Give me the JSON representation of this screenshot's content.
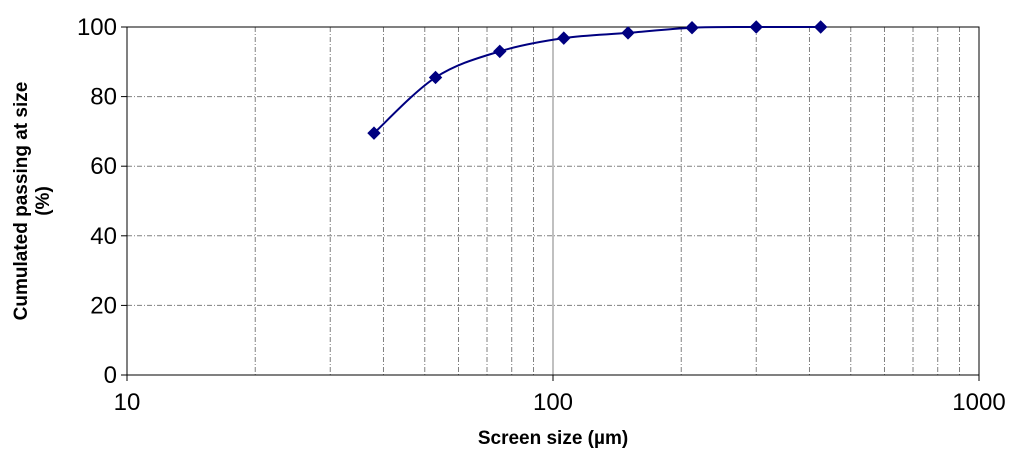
{
  "chart_data": {
    "type": "line",
    "xscale": "log",
    "xlim": [
      10,
      1000
    ],
    "ylim": [
      0,
      100
    ],
    "xticks": [
      "10",
      "100",
      "1000"
    ],
    "yticks": [
      "0",
      "20",
      "40",
      "60",
      "80",
      "100"
    ],
    "xlabel": "Screen size (µm)",
    "ylabel_line1": "Cumulated passing at size",
    "ylabel_line2": "(%)",
    "grid": true,
    "series": [
      {
        "x": [
          38,
          53,
          75,
          106,
          150,
          212,
          300,
          425
        ],
        "y": [
          69.5,
          85.5,
          93,
          96.8,
          98.3,
          99.8,
          100,
          100
        ]
      }
    ],
    "colors": {
      "series": "#000080",
      "grid": "#808080",
      "axis": "#000000"
    }
  }
}
